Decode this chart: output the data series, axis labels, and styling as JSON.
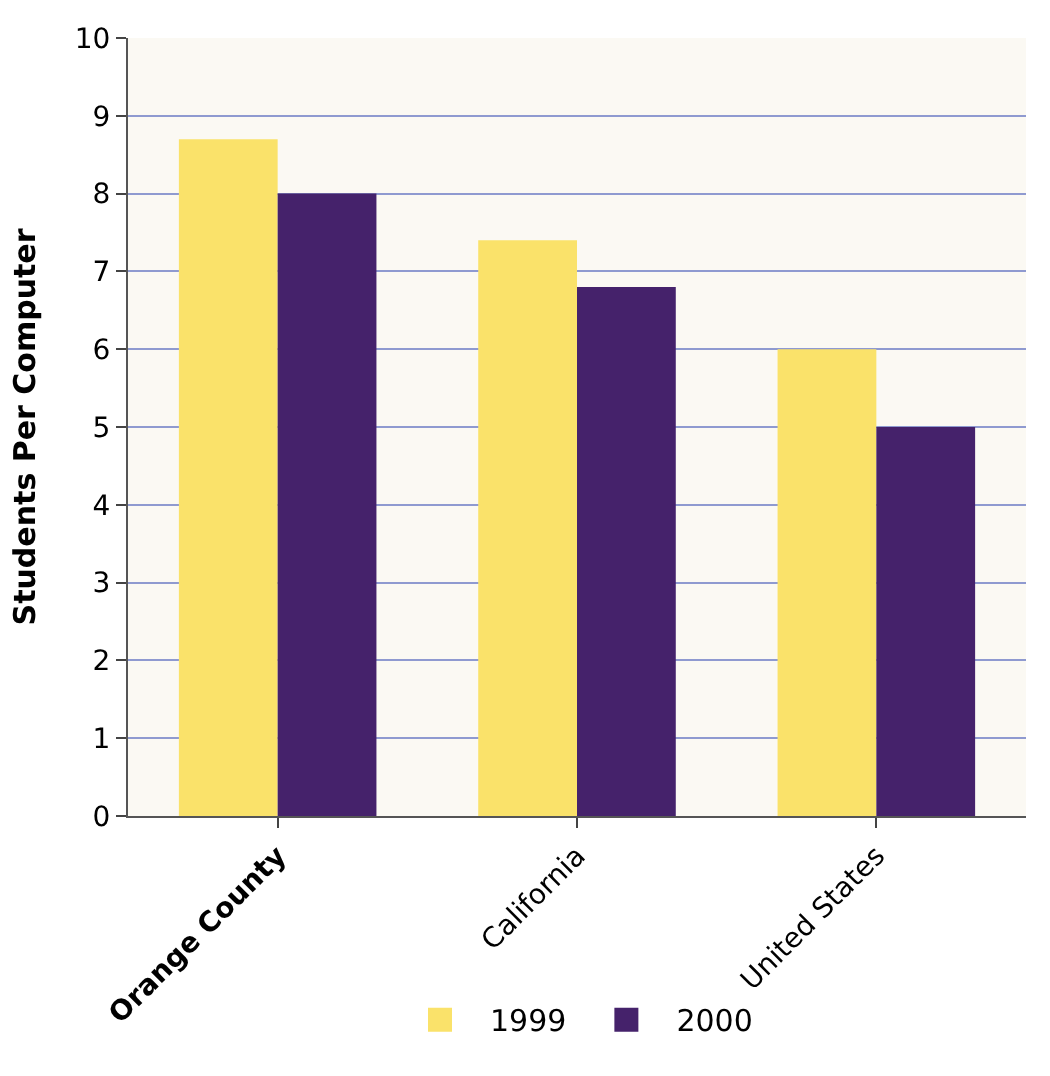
{
  "chart_data": {
    "type": "bar",
    "ylabel": "Students Per Computer",
    "categories": [
      "Orange County",
      "California",
      "United States"
    ],
    "series": [
      {
        "name": "1999",
        "color": "#fae26a",
        "values": [
          8.7,
          7.4,
          6.0
        ]
      },
      {
        "name": "2000",
        "color": "#45226b",
        "values": [
          8.0,
          6.8,
          5.0
        ]
      }
    ],
    "ylim": [
      0,
      10
    ],
    "yticks": [
      0,
      1,
      2,
      3,
      4,
      5,
      6,
      7,
      8,
      9,
      10
    ],
    "grid": "y",
    "legend": "bottom"
  }
}
